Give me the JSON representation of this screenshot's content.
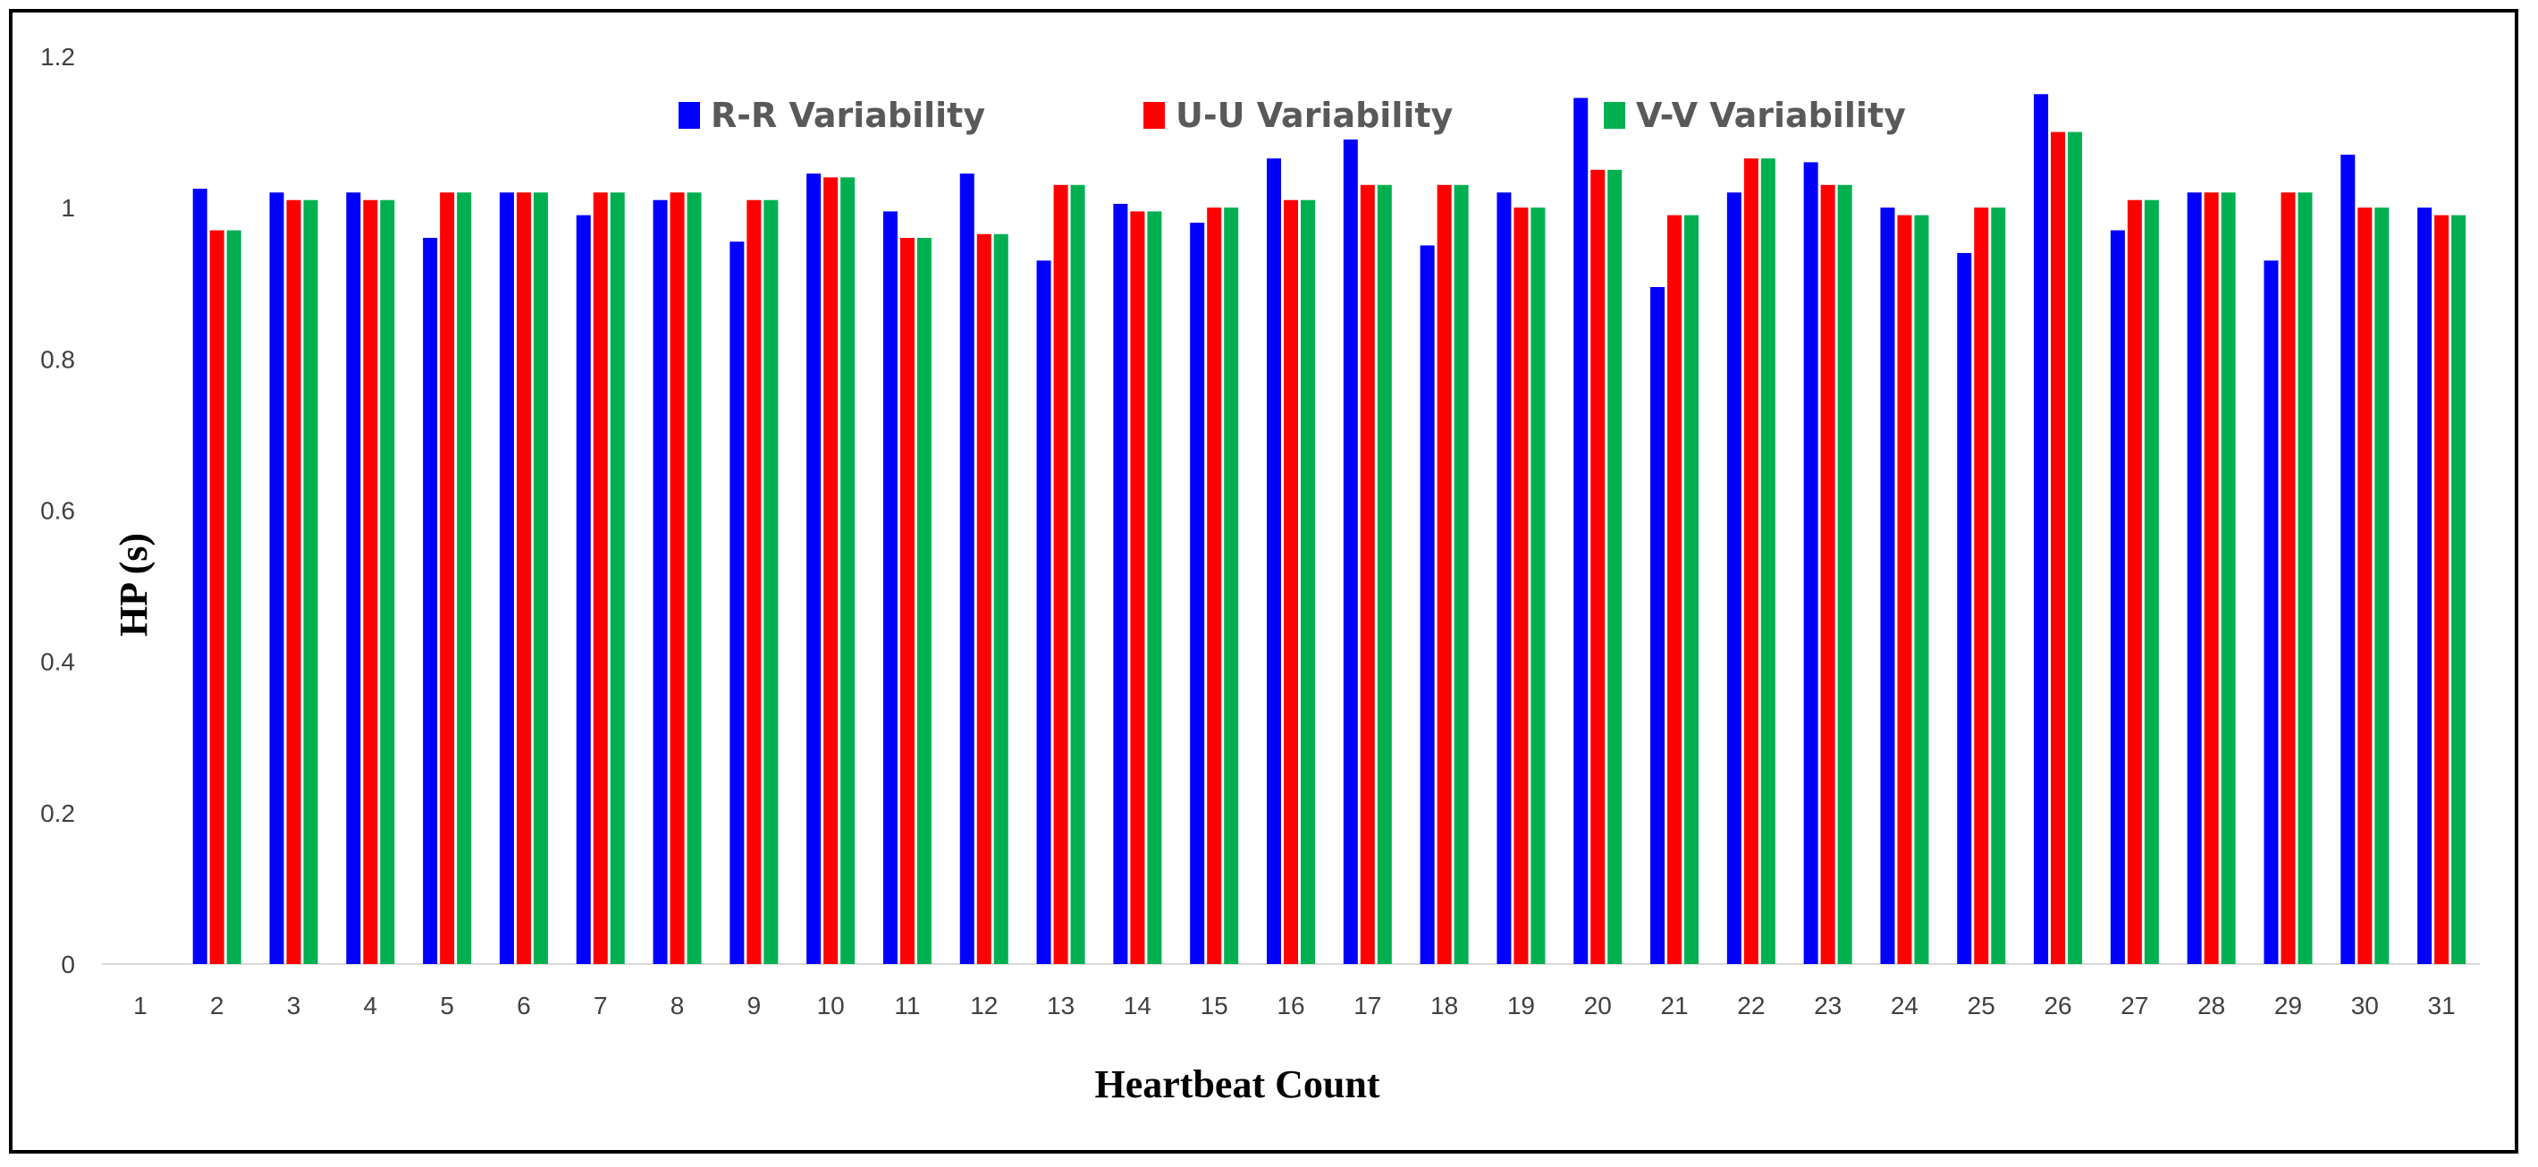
{
  "chart_data": {
    "type": "bar",
    "title": "",
    "xlabel": "Heartbeat Count",
    "ylabel": "HP (s)",
    "ylim": [
      0,
      1.2
    ],
    "yticks": [
      "0",
      "0.2",
      "0.4",
      "0.6",
      "0.8",
      "1",
      "1.2"
    ],
    "ytick_values": [
      0,
      0.2,
      0.4,
      0.6,
      0.8,
      1.0,
      1.2
    ],
    "grid": false,
    "legend_position": "top",
    "categories": [
      "1",
      "2",
      "3",
      "4",
      "5",
      "6",
      "7",
      "8",
      "9",
      "10",
      "11",
      "12",
      "13",
      "14",
      "15",
      "16",
      "17",
      "18",
      "19",
      "20",
      "21",
      "22",
      "23",
      "24",
      "25",
      "26",
      "27",
      "28",
      "29",
      "30",
      "31"
    ],
    "series": [
      {
        "name": "R-R Variability",
        "color": "#0000ff",
        "values": [
          0,
          1.025,
          1.02,
          1.02,
          0.96,
          1.02,
          0.99,
          1.01,
          0.955,
          1.045,
          0.995,
          1.045,
          0.93,
          1.005,
          0.98,
          1.065,
          1.09,
          0.95,
          1.02,
          1.145,
          0.895,
          1.02,
          1.06,
          1.0,
          0.94,
          1.15,
          0.97,
          1.02,
          0.93,
          1.07,
          1.0
        ]
      },
      {
        "name": "U-U Variability",
        "color": "#ff0000",
        "values": [
          0,
          0.97,
          1.01,
          1.01,
          1.02,
          1.02,
          1.02,
          1.02,
          1.01,
          1.04,
          0.96,
          0.965,
          1.03,
          0.995,
          1.0,
          1.01,
          1.03,
          1.03,
          1.0,
          1.05,
          0.99,
          1.065,
          1.03,
          0.99,
          1.0,
          1.1,
          1.01,
          1.02,
          1.02,
          1.0,
          0.99
        ]
      },
      {
        "name": "V-V Variability",
        "color": "#00b050",
        "values": [
          0,
          0.97,
          1.01,
          1.01,
          1.02,
          1.02,
          1.02,
          1.02,
          1.01,
          1.04,
          0.96,
          0.965,
          1.03,
          0.995,
          1.0,
          1.01,
          1.03,
          1.03,
          1.0,
          1.05,
          0.99,
          1.065,
          1.03,
          0.99,
          1.0,
          1.1,
          1.01,
          1.02,
          1.02,
          1.0,
          0.99
        ]
      }
    ]
  }
}
